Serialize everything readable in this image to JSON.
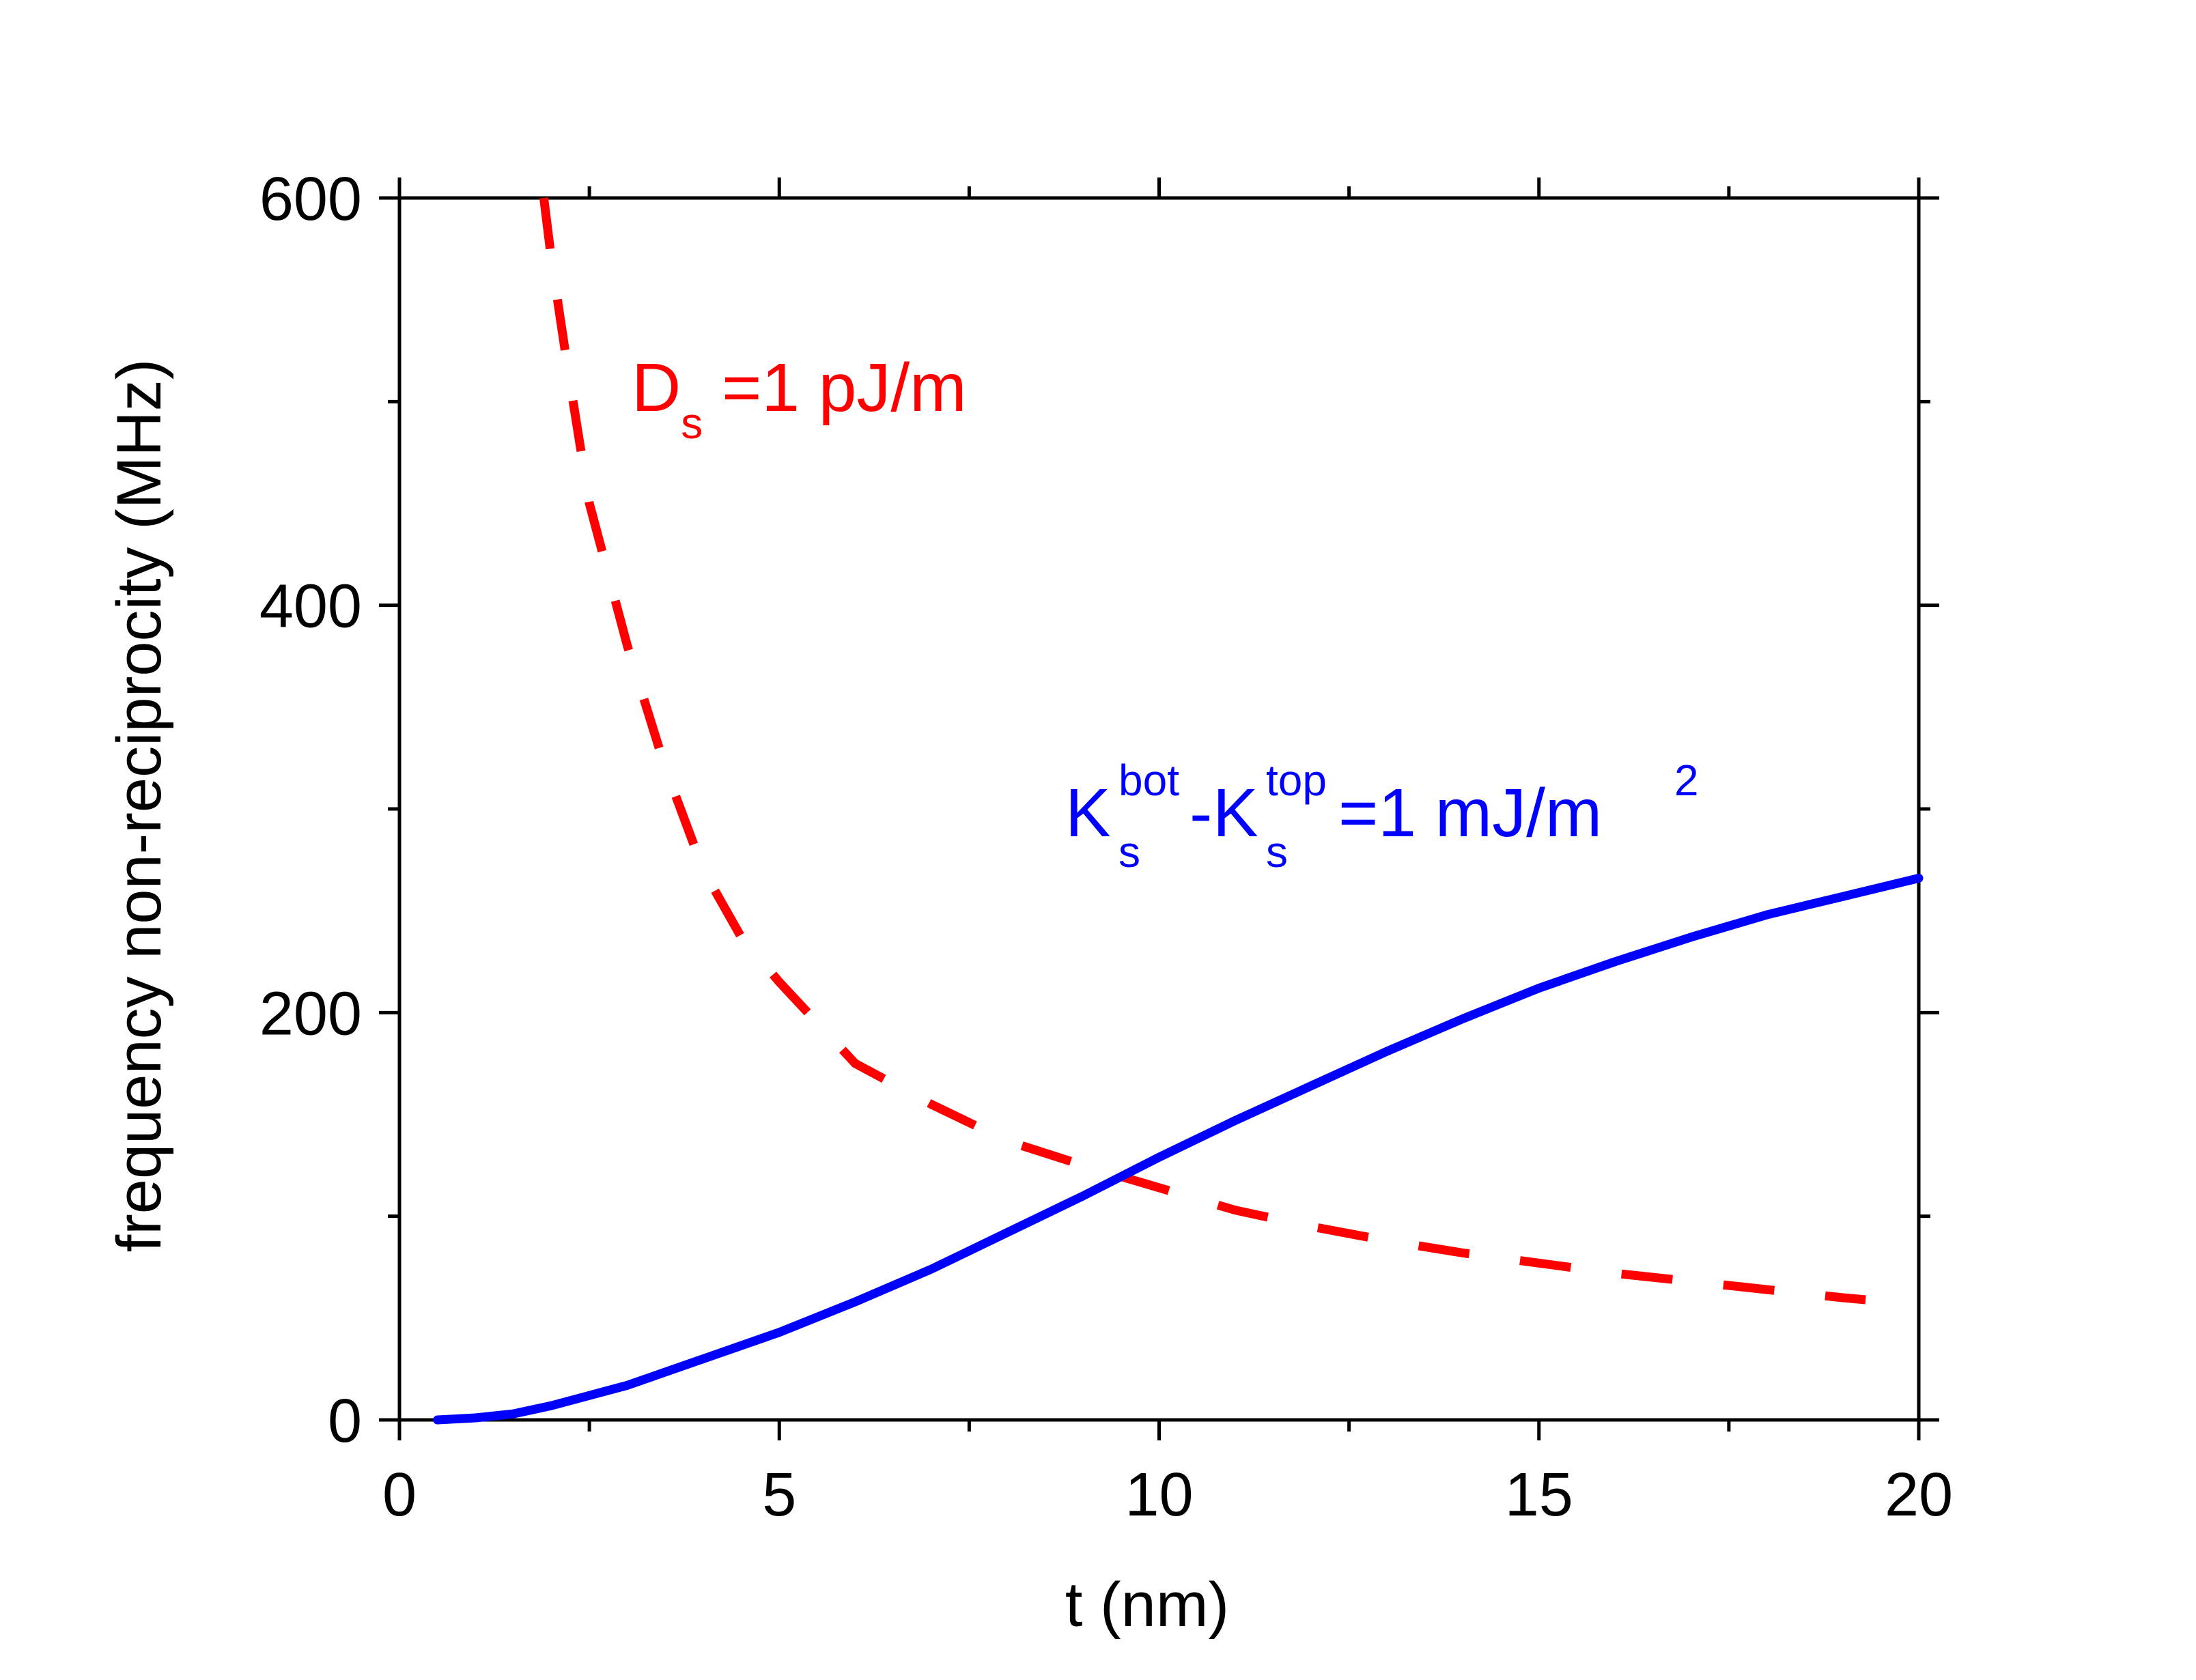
{
  "chart_data": {
    "type": "line",
    "title": "",
    "xlabel": "t (nm)",
    "ylabel": "frequency non-reciprocity (MHz)",
    "xlim": [
      0,
      20
    ],
    "ylim": [
      0,
      600
    ],
    "x_ticks": [
      0,
      5,
      10,
      15,
      20
    ],
    "x_minor_ticks": [
      2.5,
      7.5,
      12.5,
      17.5
    ],
    "y_ticks": [
      0,
      200,
      400,
      600
    ],
    "y_minor_ticks": [
      100,
      300,
      500
    ],
    "grid": false,
    "series": [
      {
        "name": "D_s =1 pJ/m",
        "color": "#ff0000",
        "style": "dashed",
        "x": [
          1.9,
          2.0,
          2.2,
          2.5,
          3.0,
          3.5,
          4.0,
          4.5,
          5.0,
          6.0,
          7.0,
          8.0,
          9.0,
          10.0,
          11.0,
          12.0,
          13.0,
          14.0,
          15.0,
          16.0,
          17.0,
          18.0,
          19.0,
          19.3
        ],
        "y": [
          600,
          570,
          520,
          450,
          380,
          320,
          270,
          237,
          215,
          175,
          155,
          137,
          125,
          114,
          103,
          95,
          88,
          82,
          77,
          72,
          68,
          64,
          60,
          59
        ]
      },
      {
        "name": "K_s^bot-K_s^top =1 mJ/m^2",
        "color": "#0000ff",
        "style": "solid",
        "x": [
          0.5,
          1.0,
          1.5,
          2.0,
          3.0,
          4.0,
          5.0,
          6.0,
          7.0,
          8.0,
          9.0,
          10.0,
          11.0,
          12.0,
          13.0,
          14.0,
          15.0,
          16.0,
          17.0,
          18.0,
          19.0,
          20.0
        ],
        "y": [
          0,
          1,
          3,
          7,
          17,
          30,
          43,
          58,
          74,
          92,
          110,
          129,
          147,
          164,
          181,
          197,
          212,
          225,
          237,
          248,
          257,
          266
        ]
      }
    ],
    "annotations": [
      {
        "id": "ds",
        "text": "D",
        "subscript": "s",
        "rest": " =1 pJ/m",
        "color": "#ff0000"
      },
      {
        "id": "ks",
        "k1": "K",
        "k1_sub": "s",
        "k1_sup": "bot",
        "dash": "-",
        "k2": "K",
        "k2_sub": "s",
        "k2_sup": "top",
        "rest": " =1 mJ/m",
        "rest_sup": "2",
        "color": "#0000ff"
      }
    ]
  }
}
